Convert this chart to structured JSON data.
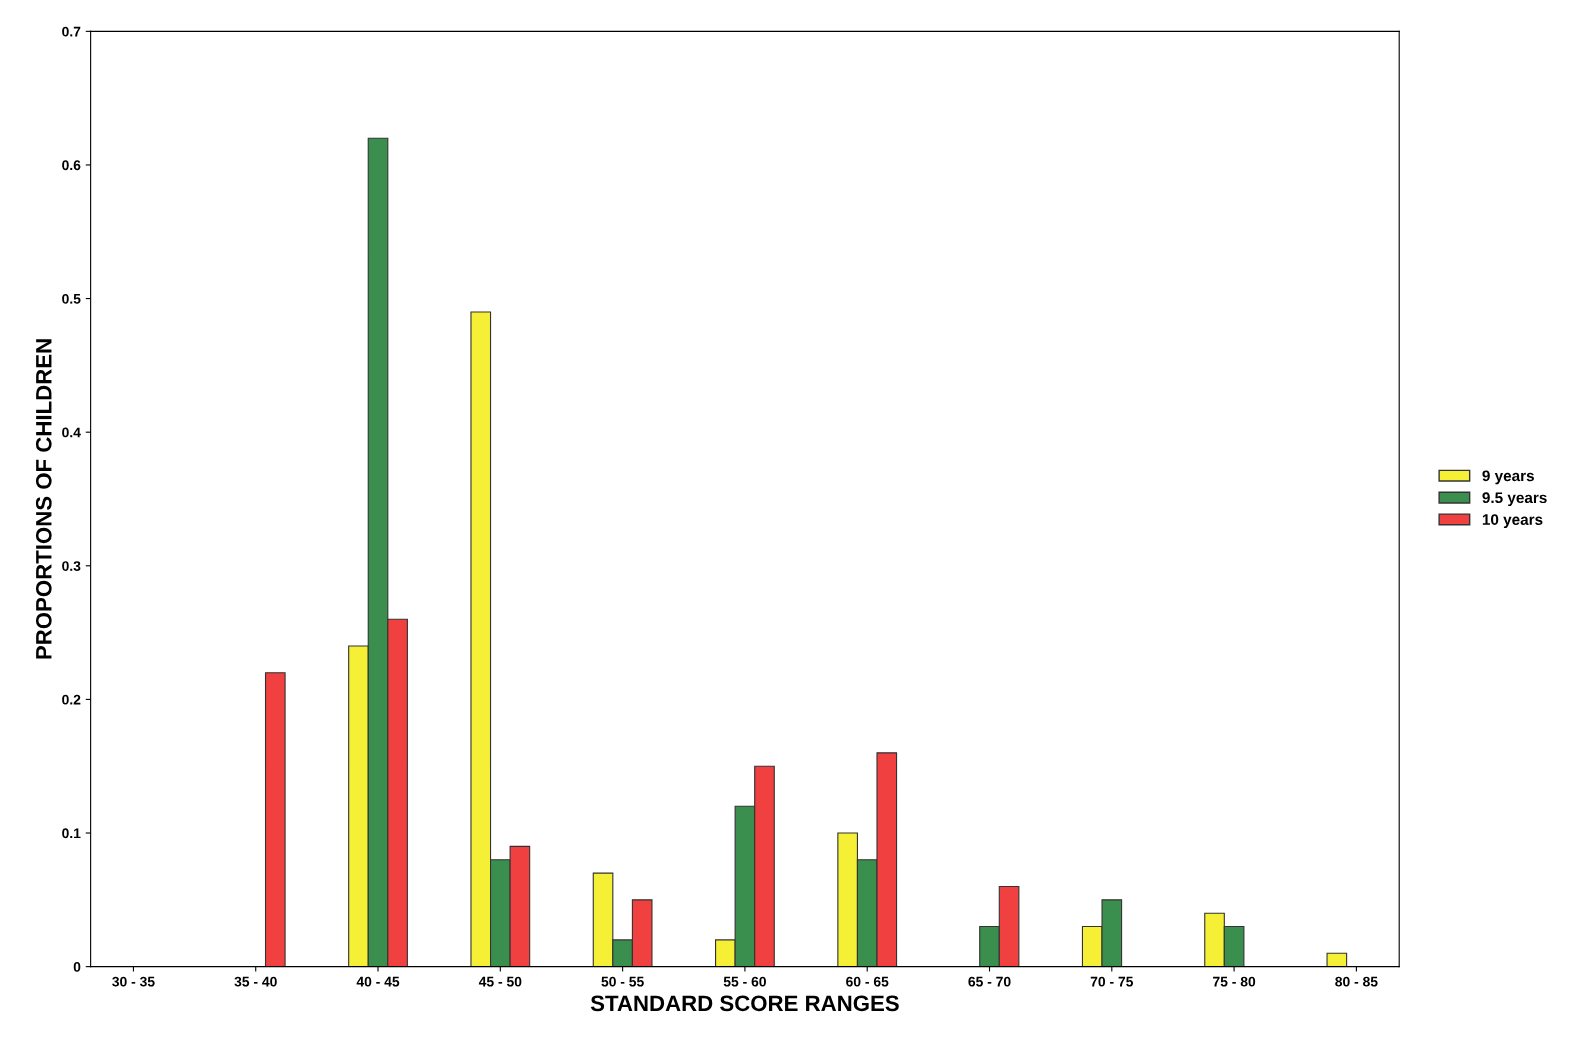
{
  "chart_data": {
    "type": "bar",
    "xlabel": "STANDARD SCORE RANGES",
    "ylabel": "PROPORTIONS OF CHILDREN",
    "categories": [
      "30 - 35",
      "35 - 40",
      "40 - 45",
      "45 - 50",
      "50 - 55",
      "55 - 60",
      "60 - 65",
      "65 - 70",
      "70 - 75",
      "75 - 80",
      "80 - 85"
    ],
    "series": [
      {
        "name": "9 years",
        "color": "#f5f035",
        "values": [
          null,
          null,
          0.24,
          0.49,
          0.07,
          0.02,
          0.1,
          null,
          0.03,
          0.04,
          0.01
        ]
      },
      {
        "name": "9.5 years",
        "color": "#3a8f4e",
        "values": [
          null,
          null,
          0.62,
          0.08,
          0.02,
          0.12,
          0.08,
          0.03,
          0.05,
          0.03,
          null
        ]
      },
      {
        "name": "10 years",
        "color": "#f04040",
        "values": [
          null,
          0.22,
          0.26,
          0.09,
          0.05,
          0.15,
          0.16,
          0.06,
          null,
          null,
          null
        ]
      }
    ],
    "ylim": [
      0,
      0.7
    ],
    "yticks": [
      0,
      0.1,
      0.2,
      0.3,
      0.4,
      0.5,
      0.6,
      0.7
    ],
    "grid": false,
    "legend": "right"
  }
}
